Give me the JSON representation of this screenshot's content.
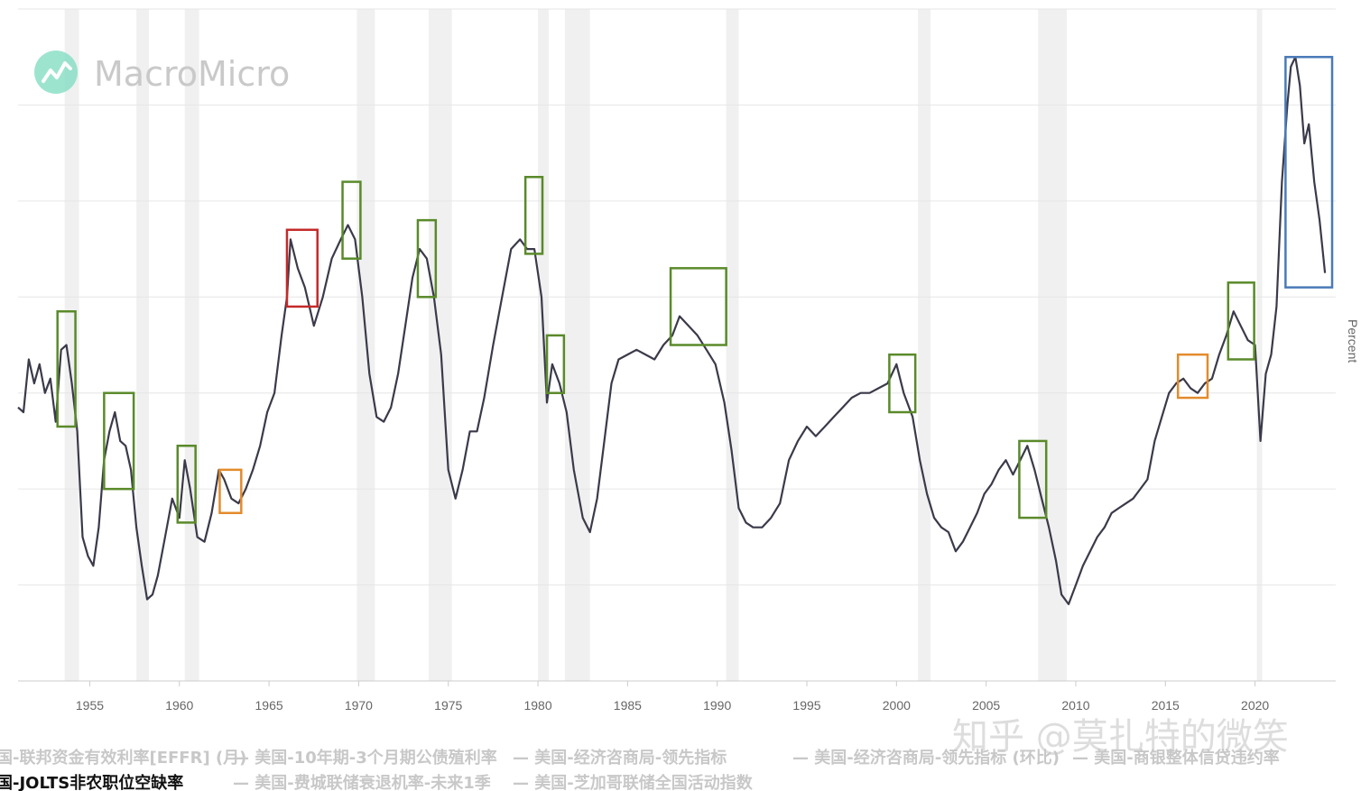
{
  "chart_data": {
    "type": "line",
    "title": "",
    "xlabel": "",
    "ylabel": "Percent",
    "xlim": [
      1951.0,
      2024.5
    ],
    "ylim": [
      0,
      7.0
    ],
    "x_ticks": [
      1955,
      1960,
      1965,
      1970,
      1975,
      1980,
      1985,
      1990,
      1995,
      2000,
      2005,
      2010,
      2015,
      2020
    ],
    "y_gridlines": [
      1,
      2,
      3,
      4,
      5,
      6,
      7
    ],
    "recessions": [
      [
        1953.6,
        1954.4
      ],
      [
        1957.6,
        1958.3
      ],
      [
        1960.3,
        1961.1
      ],
      [
        1969.9,
        1970.9
      ],
      [
        1973.9,
        1975.2
      ],
      [
        1980.0,
        1980.6
      ],
      [
        1981.5,
        1982.9
      ],
      [
        1990.5,
        1991.2
      ],
      [
        2001.2,
        2001.9
      ],
      [
        2007.9,
        2009.5
      ],
      [
        2020.1,
        2020.4
      ]
    ],
    "series": [
      {
        "name": "美国-JOLTS非农职位空缺率",
        "color": "#3a3a4a",
        "points": [
          [
            1951.0,
            2.85
          ],
          [
            1951.3,
            2.8
          ],
          [
            1951.6,
            3.35
          ],
          [
            1951.9,
            3.1
          ],
          [
            1952.2,
            3.3
          ],
          [
            1952.5,
            3.0
          ],
          [
            1952.8,
            3.15
          ],
          [
            1953.1,
            2.7
          ],
          [
            1953.4,
            3.45
          ],
          [
            1953.7,
            3.5
          ],
          [
            1954.0,
            3.1
          ],
          [
            1954.3,
            2.6
          ],
          [
            1954.6,
            1.5
          ],
          [
            1954.9,
            1.3
          ],
          [
            1955.2,
            1.2
          ],
          [
            1955.5,
            1.6
          ],
          [
            1955.8,
            2.3
          ],
          [
            1956.1,
            2.6
          ],
          [
            1956.4,
            2.8
          ],
          [
            1956.7,
            2.5
          ],
          [
            1957.0,
            2.45
          ],
          [
            1957.3,
            2.2
          ],
          [
            1957.6,
            1.6
          ],
          [
            1957.9,
            1.2
          ],
          [
            1958.2,
            0.85
          ],
          [
            1958.5,
            0.9
          ],
          [
            1958.8,
            1.1
          ],
          [
            1959.2,
            1.5
          ],
          [
            1959.6,
            1.9
          ],
          [
            1960.0,
            1.7
          ],
          [
            1960.3,
            2.3
          ],
          [
            1960.6,
            2.0
          ],
          [
            1961.0,
            1.5
          ],
          [
            1961.4,
            1.45
          ],
          [
            1961.8,
            1.75
          ],
          [
            1962.2,
            2.2
          ],
          [
            1962.5,
            2.1
          ],
          [
            1962.9,
            1.9
          ],
          [
            1963.3,
            1.85
          ],
          [
            1963.7,
            2.0
          ],
          [
            1964.1,
            2.2
          ],
          [
            1964.5,
            2.45
          ],
          [
            1964.9,
            2.8
          ],
          [
            1965.3,
            3.0
          ],
          [
            1965.7,
            3.6
          ],
          [
            1966.0,
            4.0
          ],
          [
            1966.2,
            4.6
          ],
          [
            1966.6,
            4.3
          ],
          [
            1967.0,
            4.1
          ],
          [
            1967.5,
            3.7
          ],
          [
            1968.0,
            4.0
          ],
          [
            1968.5,
            4.4
          ],
          [
            1969.0,
            4.6
          ],
          [
            1969.4,
            4.75
          ],
          [
            1969.8,
            4.6
          ],
          [
            1970.2,
            4.0
          ],
          [
            1970.6,
            3.2
          ],
          [
            1971.0,
            2.75
          ],
          [
            1971.4,
            2.7
          ],
          [
            1971.8,
            2.85
          ],
          [
            1972.2,
            3.2
          ],
          [
            1972.6,
            3.7
          ],
          [
            1973.0,
            4.2
          ],
          [
            1973.4,
            4.5
          ],
          [
            1973.8,
            4.4
          ],
          [
            1974.2,
            4.0
          ],
          [
            1974.6,
            3.4
          ],
          [
            1975.0,
            2.2
          ],
          [
            1975.4,
            1.9
          ],
          [
            1975.8,
            2.2
          ],
          [
            1976.2,
            2.6
          ],
          [
            1976.6,
            2.6
          ],
          [
            1977.0,
            2.95
          ],
          [
            1977.5,
            3.5
          ],
          [
            1978.0,
            4.0
          ],
          [
            1978.5,
            4.5
          ],
          [
            1979.0,
            4.6
          ],
          [
            1979.4,
            4.5
          ],
          [
            1979.8,
            4.5
          ],
          [
            1980.2,
            4.0
          ],
          [
            1980.5,
            2.9
          ],
          [
            1980.8,
            3.3
          ],
          [
            1981.2,
            3.1
          ],
          [
            1981.6,
            2.8
          ],
          [
            1982.0,
            2.2
          ],
          [
            1982.5,
            1.7
          ],
          [
            1982.9,
            1.55
          ],
          [
            1983.3,
            1.9
          ],
          [
            1983.7,
            2.5
          ],
          [
            1984.1,
            3.1
          ],
          [
            1984.5,
            3.35
          ],
          [
            1985.0,
            3.4
          ],
          [
            1985.5,
            3.45
          ],
          [
            1986.0,
            3.4
          ],
          [
            1986.5,
            3.35
          ],
          [
            1987.0,
            3.5
          ],
          [
            1987.5,
            3.6
          ],
          [
            1987.9,
            3.8
          ],
          [
            1988.4,
            3.7
          ],
          [
            1988.9,
            3.6
          ],
          [
            1989.4,
            3.45
          ],
          [
            1989.9,
            3.3
          ],
          [
            1990.4,
            2.9
          ],
          [
            1990.8,
            2.4
          ],
          [
            1991.2,
            1.8
          ],
          [
            1991.6,
            1.65
          ],
          [
            1992.0,
            1.6
          ],
          [
            1992.5,
            1.6
          ],
          [
            1993.0,
            1.7
          ],
          [
            1993.5,
            1.85
          ],
          [
            1994.0,
            2.3
          ],
          [
            1994.5,
            2.5
          ],
          [
            1995.0,
            2.65
          ],
          [
            1995.5,
            2.55
          ],
          [
            1996.0,
            2.65
          ],
          [
            1996.5,
            2.75
          ],
          [
            1997.0,
            2.85
          ],
          [
            1997.5,
            2.95
          ],
          [
            1998.0,
            3.0
          ],
          [
            1998.5,
            3.0
          ],
          [
            1999.0,
            3.05
          ],
          [
            1999.5,
            3.1
          ],
          [
            2000.0,
            3.3
          ],
          [
            2000.4,
            3.0
          ],
          [
            2000.9,
            2.75
          ],
          [
            2001.3,
            2.3
          ],
          [
            2001.7,
            1.95
          ],
          [
            2002.1,
            1.7
          ],
          [
            2002.5,
            1.6
          ],
          [
            2002.9,
            1.55
          ],
          [
            2003.3,
            1.35
          ],
          [
            2003.7,
            1.45
          ],
          [
            2004.1,
            1.6
          ],
          [
            2004.5,
            1.75
          ],
          [
            2004.9,
            1.95
          ],
          [
            2005.3,
            2.05
          ],
          [
            2005.7,
            2.2
          ],
          [
            2006.1,
            2.3
          ],
          [
            2006.5,
            2.15
          ],
          [
            2006.9,
            2.3
          ],
          [
            2007.3,
            2.45
          ],
          [
            2007.7,
            2.2
          ],
          [
            2008.1,
            1.9
          ],
          [
            2008.5,
            1.6
          ],
          [
            2008.9,
            1.25
          ],
          [
            2009.2,
            0.9
          ],
          [
            2009.6,
            0.8
          ],
          [
            2010.0,
            1.0
          ],
          [
            2010.4,
            1.2
          ],
          [
            2010.8,
            1.35
          ],
          [
            2011.2,
            1.5
          ],
          [
            2011.6,
            1.6
          ],
          [
            2012.0,
            1.75
          ],
          [
            2012.4,
            1.8
          ],
          [
            2012.8,
            1.85
          ],
          [
            2013.2,
            1.9
          ],
          [
            2013.6,
            2.0
          ],
          [
            2014.0,
            2.1
          ],
          [
            2014.4,
            2.5
          ],
          [
            2014.8,
            2.75
          ],
          [
            2015.2,
            3.0
          ],
          [
            2015.6,
            3.1
          ],
          [
            2016.0,
            3.15
          ],
          [
            2016.4,
            3.05
          ],
          [
            2016.8,
            3.0
          ],
          [
            2017.2,
            3.1
          ],
          [
            2017.6,
            3.15
          ],
          [
            2018.0,
            3.4
          ],
          [
            2018.4,
            3.6
          ],
          [
            2018.8,
            3.85
          ],
          [
            2019.2,
            3.7
          ],
          [
            2019.6,
            3.55
          ],
          [
            2020.0,
            3.5
          ],
          [
            2020.3,
            2.5
          ],
          [
            2020.6,
            3.2
          ],
          [
            2020.9,
            3.4
          ],
          [
            2021.2,
            3.9
          ],
          [
            2021.5,
            5.2
          ],
          [
            2021.8,
            6.0
          ],
          [
            2022.0,
            6.4
          ],
          [
            2022.25,
            6.5
          ],
          [
            2022.5,
            6.2
          ],
          [
            2022.75,
            5.6
          ],
          [
            2023.0,
            5.8
          ],
          [
            2023.3,
            5.2
          ],
          [
            2023.6,
            4.8
          ],
          [
            2023.9,
            4.25
          ]
        ]
      }
    ],
    "annotations": [
      {
        "color": "#5a8a2a",
        "x0": 1953.2,
        "x1": 1954.2,
        "y0": 2.65,
        "y1": 3.85
      },
      {
        "color": "#5a8a2a",
        "x0": 1955.8,
        "x1": 1957.45,
        "y0": 2.0,
        "y1": 3.0
      },
      {
        "color": "#5a8a2a",
        "x0": 1959.9,
        "x1": 1960.9,
        "y0": 1.65,
        "y1": 2.45
      },
      {
        "color": "#e38b2c",
        "x0": 1962.25,
        "x1": 1963.45,
        "y0": 1.75,
        "y1": 2.2
      },
      {
        "color": "#c42a2a",
        "x0": 1966.0,
        "x1": 1967.7,
        "y0": 3.9,
        "y1": 4.7
      },
      {
        "color": "#5a8a2a",
        "x0": 1969.1,
        "x1": 1970.1,
        "y0": 4.4,
        "y1": 5.2
      },
      {
        "color": "#5a8a2a",
        "x0": 1973.3,
        "x1": 1974.3,
        "y0": 4.0,
        "y1": 4.8
      },
      {
        "color": "#5a8a2a",
        "x0": 1979.3,
        "x1": 1980.25,
        "y0": 4.45,
        "y1": 5.25
      },
      {
        "color": "#5a8a2a",
        "x0": 1980.5,
        "x1": 1981.45,
        "y0": 3.0,
        "y1": 3.6
      },
      {
        "color": "#5a8a2a",
        "x0": 1987.4,
        "x1": 1990.5,
        "y0": 3.5,
        "y1": 4.3
      },
      {
        "color": "#5a8a2a",
        "x0": 1999.6,
        "x1": 2001.05,
        "y0": 2.8,
        "y1": 3.4
      },
      {
        "color": "#5a8a2a",
        "x0": 2006.85,
        "x1": 2008.35,
        "y0": 1.7,
        "y1": 2.5
      },
      {
        "color": "#e38b2c",
        "x0": 2015.7,
        "x1": 2017.35,
        "y0": 2.95,
        "y1": 3.4
      },
      {
        "color": "#5a8a2a",
        "x0": 2018.5,
        "x1": 2019.95,
        "y0": 3.35,
        "y1": 4.15
      },
      {
        "color": "#4a7ab8",
        "x0": 2021.7,
        "x1": 2024.3,
        "y0": 4.1,
        "y1": 6.5
      }
    ]
  },
  "watermark": {
    "brand": "MacroMicro",
    "credit": "知乎 @莫扎特的微笑"
  },
  "legend": {
    "row1": [
      "国-联邦资金有效利率[EFFR] (月)",
      "— 美国-10年期-3个月期公债殖利率",
      "— 美国-经济咨商局-领先指标",
      "— 美国-经济咨商局-领先指标 (环比)",
      "— 美国-商银整体信贷违约率"
    ],
    "row2_active": "国-JOLTS非农职位空缺率",
    "row2": [
      "— 美国-费城联储衰退机率-未来1季",
      "— 美国-芝加哥联储全国活动指数"
    ]
  },
  "colors": {
    "line": "#3a3a4a",
    "grid": "#e6e6e6",
    "recession": "#f0f0f0",
    "green": "#5a8a2a",
    "orange": "#e38b2c",
    "red": "#c42a2a",
    "blue": "#4a7ab8",
    "logo": "#7ddcc0"
  }
}
